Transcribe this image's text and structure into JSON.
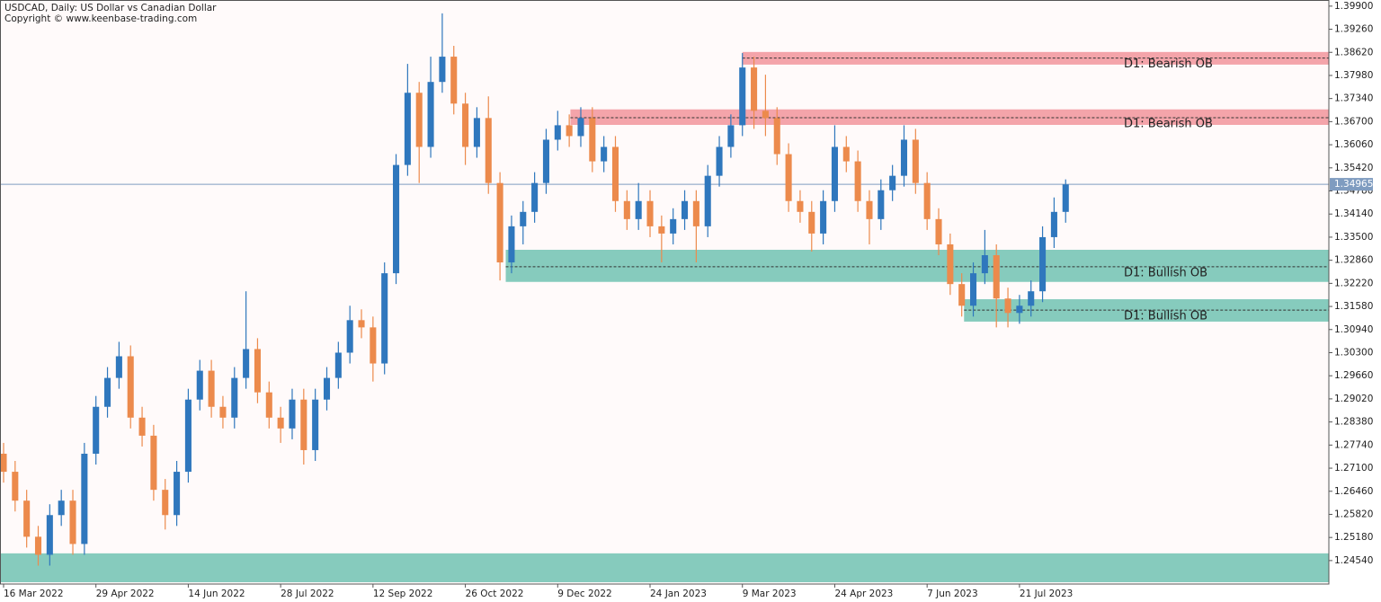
{
  "chart_data": {
    "type": "candlestick",
    "title": "USDCAD, Daily:  US Dollar vs Canadian Dollar",
    "subtitle": "Copyright © www.keenbase-trading.com",
    "up_color": "#2f77bd",
    "down_color": "#ec8a4c",
    "background": "#fffafa",
    "xlim": [
      -0.31,
      114.8
    ],
    "ylim": [
      1.2389,
      1.4007
    ],
    "xticks": [
      {
        "value": 0,
        "label": "16 Mar 2022"
      },
      {
        "value": 8,
        "label": "29 Apr 2022"
      },
      {
        "value": 16,
        "label": "14 Jun 2022"
      },
      {
        "value": 24,
        "label": "28 Jul 2022"
      },
      {
        "value": 32,
        "label": "12 Sep 2022"
      },
      {
        "value": 40,
        "label": "26 Oct 2022"
      },
      {
        "value": 48,
        "label": "9 Dec 2022"
      },
      {
        "value": 56,
        "label": "24 Jan 2023"
      },
      {
        "value": 64,
        "label": "9 Mar 2023"
      },
      {
        "value": 72,
        "label": "24 Apr 2023"
      },
      {
        "value": 80,
        "label": "7 Jun 2023"
      },
      {
        "value": 88,
        "label": "21 Jul 2023"
      }
    ],
    "yticks": [
      {
        "value": 1.399,
        "label": "1.39900"
      },
      {
        "value": 1.3926,
        "label": "1.39260"
      },
      {
        "value": 1.3862,
        "label": "1.38620"
      },
      {
        "value": 1.3798,
        "label": "1.37980"
      },
      {
        "value": 1.3734,
        "label": "1.37340"
      },
      {
        "value": 1.367,
        "label": "1.36700"
      },
      {
        "value": 1.3606,
        "label": "1.36060"
      },
      {
        "value": 1.3542,
        "label": "1.35420"
      },
      {
        "value": 1.3478,
        "label": "1.34780"
      },
      {
        "value": 1.3414,
        "label": "1.34140"
      },
      {
        "value": 1.335,
        "label": "1.33500"
      },
      {
        "value": 1.3286,
        "label": "1.32860"
      },
      {
        "value": 1.3222,
        "label": "1.32220"
      },
      {
        "value": 1.3158,
        "label": "1.31580"
      },
      {
        "value": 1.3094,
        "label": "1.30940"
      },
      {
        "value": 1.303,
        "label": "1.30300"
      },
      {
        "value": 1.2966,
        "label": "1.29660"
      },
      {
        "value": 1.2902,
        "label": "1.29020"
      },
      {
        "value": 1.2838,
        "label": "1.28380"
      },
      {
        "value": 1.2774,
        "label": "1.27740"
      },
      {
        "value": 1.271,
        "label": "1.27100"
      },
      {
        "value": 1.2646,
        "label": "1.26460"
      },
      {
        "value": 1.2582,
        "label": "1.25820"
      },
      {
        "value": 1.2518,
        "label": "1.25180"
      },
      {
        "value": 1.2454,
        "label": "1.24540"
      }
    ],
    "last_price": {
      "value": 1.34965,
      "label": "1.34965",
      "color": "#7f9cc0"
    },
    "zones": [
      {
        "label": "D1: Bearish OB",
        "start": 64,
        "top": 1.3863,
        "bottom": 1.3828,
        "mid": 1.3846,
        "color": "#f4a4aa"
      },
      {
        "label": "D1: Bearish OB",
        "start": 49.1,
        "top": 1.3704,
        "bottom": 1.3661,
        "mid": 1.3681,
        "color": "#f4a4aa"
      },
      {
        "label": "D1: Bullish OB",
        "start": 43.5,
        "top": 1.3315,
        "bottom": 1.3226,
        "mid": 1.3268,
        "color": "#86cbbd"
      },
      {
        "label": "D1: Bullish OB",
        "start": 83.2,
        "top": 1.3178,
        "bottom": 1.3116,
        "mid": 1.3148,
        "color": "#86cbbd"
      },
      {
        "top": 1.2474,
        "bottom": 1.2394,
        "color": "#86cbbd"
      }
    ],
    "open": [
      1.275,
      1.27,
      1.262,
      1.252,
      1.247,
      1.258,
      1.262,
      1.25,
      1.275,
      1.288,
      1.296,
      1.302,
      1.285,
      1.28,
      1.265,
      1.258,
      1.27,
      1.29,
      1.298,
      1.288,
      1.285,
      1.296,
      1.304,
      1.292,
      1.285,
      1.282,
      1.29,
      1.276,
      1.29,
      1.296,
      1.303,
      1.312,
      1.31,
      1.3,
      1.325,
      1.355,
      1.375,
      1.36,
      1.378,
      1.385,
      1.372,
      1.36,
      1.368,
      1.35,
      1.328,
      1.338,
      1.342,
      1.35,
      1.362,
      1.366,
      1.363,
      1.368,
      1.356,
      1.36,
      1.345,
      1.34,
      1.345,
      1.338,
      1.336,
      1.34,
      1.345,
      1.338,
      1.352,
      1.36,
      1.366,
      1.382,
      1.37,
      1.368,
      1.358,
      1.345,
      1.342,
      1.336,
      1.345,
      1.36,
      1.356,
      1.345,
      1.34,
      1.348,
      1.352,
      1.362,
      1.35,
      1.34,
      1.333,
      1.322,
      1.316,
      1.325,
      1.33,
      1.318,
      1.314,
      1.316,
      1.32,
      1.335,
      1.342
    ],
    "high": [
      1.278,
      1.273,
      1.265,
      1.255,
      1.261,
      1.265,
      1.265,
      1.278,
      1.291,
      1.299,
      1.306,
      1.305,
      1.288,
      1.283,
      1.268,
      1.273,
      1.293,
      1.301,
      1.301,
      1.291,
      1.299,
      1.32,
      1.307,
      1.295,
      1.288,
      1.293,
      1.293,
      1.293,
      1.299,
      1.306,
      1.316,
      1.315,
      1.313,
      1.328,
      1.358,
      1.383,
      1.378,
      1.385,
      1.397,
      1.388,
      1.375,
      1.371,
      1.374,
      1.353,
      1.341,
      1.345,
      1.353,
      1.365,
      1.37,
      1.369,
      1.371,
      1.371,
      1.363,
      1.363,
      1.348,
      1.35,
      1.348,
      1.341,
      1.343,
      1.348,
      1.348,
      1.355,
      1.363,
      1.369,
      1.386,
      1.385,
      1.38,
      1.371,
      1.361,
      1.348,
      1.345,
      1.348,
      1.366,
      1.363,
      1.359,
      1.348,
      1.351,
      1.355,
      1.366,
      1.365,
      1.353,
      1.343,
      1.336,
      1.325,
      1.328,
      1.337,
      1.333,
      1.321,
      1.319,
      1.323,
      1.338,
      1.346,
      1.351
    ],
    "low": [
      1.267,
      1.259,
      1.249,
      1.244,
      1.244,
      1.255,
      1.247,
      1.247,
      1.272,
      1.285,
      1.293,
      1.282,
      1.277,
      1.262,
      1.254,
      1.255,
      1.267,
      1.287,
      1.285,
      1.282,
      1.282,
      1.293,
      1.289,
      1.282,
      1.278,
      1.279,
      1.272,
      1.273,
      1.287,
      1.293,
      1.3,
      1.307,
      1.295,
      1.297,
      1.322,
      1.352,
      1.35,
      1.357,
      1.375,
      1.369,
      1.355,
      1.357,
      1.347,
      1.323,
      1.325,
      1.333,
      1.339,
      1.347,
      1.359,
      1.36,
      1.36,
      1.353,
      1.353,
      1.342,
      1.337,
      1.337,
      1.335,
      1.328,
      1.333,
      1.337,
      1.328,
      1.335,
      1.349,
      1.357,
      1.363,
      1.365,
      1.363,
      1.355,
      1.342,
      1.339,
      1.331,
      1.333,
      1.342,
      1.353,
      1.342,
      1.333,
      1.337,
      1.345,
      1.349,
      1.347,
      1.337,
      1.33,
      1.319,
      1.313,
      1.313,
      1.322,
      1.31,
      1.31,
      1.311,
      1.313,
      1.317,
      1.332,
      1.339
    ],
    "close": [
      1.27,
      1.262,
      1.252,
      1.247,
      1.258,
      1.262,
      1.25,
      1.275,
      1.288,
      1.296,
      1.302,
      1.285,
      1.28,
      1.265,
      1.258,
      1.27,
      1.29,
      1.298,
      1.288,
      1.285,
      1.296,
      1.304,
      1.292,
      1.285,
      1.282,
      1.29,
      1.276,
      1.29,
      1.296,
      1.303,
      1.312,
      1.31,
      1.3,
      1.325,
      1.355,
      1.375,
      1.36,
      1.378,
      1.385,
      1.372,
      1.36,
      1.368,
      1.35,
      1.328,
      1.338,
      1.342,
      1.35,
      1.362,
      1.366,
      1.363,
      1.368,
      1.356,
      1.36,
      1.345,
      1.34,
      1.345,
      1.338,
      1.336,
      1.34,
      1.345,
      1.338,
      1.352,
      1.36,
      1.366,
      1.382,
      1.37,
      1.368,
      1.358,
      1.345,
      1.342,
      1.336,
      1.345,
      1.36,
      1.356,
      1.345,
      1.34,
      1.348,
      1.352,
      1.362,
      1.35,
      1.34,
      1.333,
      1.322,
      1.316,
      1.325,
      1.33,
      1.318,
      1.314,
      1.316,
      1.32,
      1.335,
      1.342,
      1.3496
    ]
  }
}
